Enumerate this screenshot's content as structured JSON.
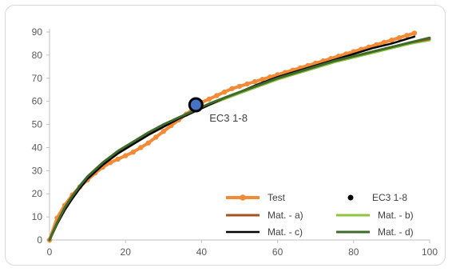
{
  "chart_data": {
    "type": "line",
    "title": "",
    "xlabel": "",
    "ylabel": "",
    "xlim": [
      0,
      100
    ],
    "ylim": [
      0,
      90
    ],
    "xticks": [
      0,
      20,
      40,
      60,
      80,
      100
    ],
    "yticks": [
      0,
      10,
      20,
      30,
      40,
      50,
      60,
      70,
      80,
      90
    ],
    "grid": {
      "horizontal": false,
      "vertical": false
    },
    "legend_placement": "bottom-right",
    "series": [
      {
        "name": "Test",
        "color": "#f28a36",
        "style": "line-markers",
        "x": [
          0,
          2,
          4,
          6,
          8,
          10,
          12,
          14,
          16,
          18,
          20,
          22,
          24,
          26,
          28,
          30,
          32,
          34,
          36,
          38,
          40,
          42,
          44,
          46,
          48,
          50,
          52,
          54,
          56,
          58,
          60,
          62,
          64,
          66,
          68,
          70,
          72,
          74,
          76,
          78,
          80,
          82,
          84,
          86,
          88,
          90,
          92,
          94,
          96
        ],
        "y": [
          0,
          9.5,
          15,
          19.5,
          23,
          26,
          29,
          31.5,
          33.5,
          35,
          36.5,
          38,
          40,
          42,
          44.5,
          47,
          49.5,
          52,
          54.5,
          57,
          59.5,
          61,
          62.5,
          64,
          65.5,
          66.5,
          67.5,
          68.5,
          69.5,
          70.5,
          71.5,
          72.5,
          73.5,
          74.5,
          75.5,
          76.5,
          77.5,
          78.5,
          79.5,
          80.5,
          81.5,
          82.5,
          83.5,
          84.5,
          85.5,
          86.5,
          87.5,
          88.5,
          89.5
        ]
      },
      {
        "name": "Mat. - a)",
        "color": "#a94f1d",
        "style": "line",
        "x": [
          0,
          2,
          4,
          6,
          8,
          10,
          14,
          18,
          22,
          26,
          30,
          34,
          38,
          42,
          46,
          50,
          55,
          60,
          65,
          70,
          75,
          80,
          85,
          90,
          95,
          100
        ],
        "y": [
          0,
          7,
          13,
          18,
          22.5,
          26.5,
          32.5,
          37.5,
          41.5,
          45.5,
          49,
          52.5,
          55.5,
          58.5,
          61.5,
          64,
          67,
          70,
          72.5,
          75,
          77.5,
          79.5,
          81.5,
          83.5,
          85.5,
          87
        ]
      },
      {
        "name": "Mat. - b)",
        "color": "#8cc63f",
        "style": "line",
        "x": [
          0,
          2,
          4,
          6,
          8,
          10,
          14,
          18,
          22,
          26,
          30,
          34,
          38,
          42,
          46,
          50,
          55,
          60,
          65,
          70,
          75,
          80,
          85,
          90,
          95,
          100
        ],
        "y": [
          0,
          7.5,
          13.5,
          18.5,
          23,
          27,
          33,
          38,
          42,
          46,
          49.5,
          52.5,
          55.5,
          58.5,
          61,
          63.5,
          66.5,
          69.5,
          72,
          74.5,
          77,
          79,
          81,
          83,
          85,
          86.5
        ]
      },
      {
        "name": "Mat. - c)",
        "color": "#000000",
        "style": "line",
        "x": [
          0,
          2,
          4,
          6,
          8,
          10,
          14,
          18,
          22,
          26,
          30,
          34,
          38,
          42,
          46,
          50,
          55,
          60,
          65,
          70,
          75,
          80,
          85,
          90,
          96
        ],
        "y": [
          0,
          7,
          13,
          18,
          22.5,
          26.5,
          32.5,
          37.5,
          41.5,
          45.5,
          49,
          52.5,
          55.5,
          58.5,
          61.5,
          64,
          67.5,
          70.5,
          73,
          75.5,
          78,
          80.5,
          83,
          85,
          88
        ]
      },
      {
        "name": "Mat. - d)",
        "color": "#3e6b2c",
        "style": "line",
        "x": [
          0,
          2,
          4,
          6,
          8,
          10,
          14,
          18,
          22,
          26,
          30,
          34,
          38,
          42,
          46,
          50,
          55,
          60,
          65,
          70,
          75,
          80,
          85,
          90,
          95,
          100
        ],
        "y": [
          0,
          7.5,
          14,
          19,
          23.5,
          27.5,
          33.5,
          38.5,
          42.5,
          46.5,
          50,
          53,
          56,
          59,
          61.5,
          64,
          67,
          70,
          72.5,
          75,
          77.5,
          79.5,
          81.5,
          83.5,
          85.5,
          87.5
        ]
      },
      {
        "name": "EC3 1-8",
        "color": "#4472c4",
        "style": "point",
        "x": [
          38.5
        ],
        "y": [
          58.5
        ]
      }
    ],
    "annotations": [
      {
        "text": "EC3 1-8",
        "x": 38.5,
        "y": 58.5
      }
    ]
  }
}
